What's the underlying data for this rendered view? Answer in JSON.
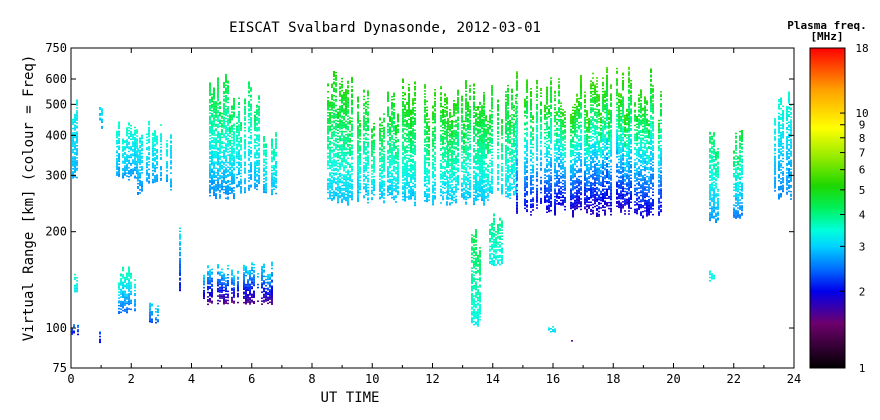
{
  "chart_data": {
    "type": "scatter",
    "title": "EISCAT Svalbard Dynasonde, 2012-03-01",
    "xlabel": "UT TIME",
    "ylabel": "Virtual Range [km] (colour = Freq)",
    "xlim": [
      0,
      24
    ],
    "ylim": [
      75,
      750
    ],
    "yscale": "log",
    "xticks": [
      0,
      2,
      4,
      6,
      8,
      10,
      12,
      14,
      16,
      18,
      20,
      22,
      24
    ],
    "yticks": [
      75,
      100,
      200,
      300,
      400,
      500,
      600,
      750
    ],
    "colorbar": {
      "title_line1": "Plasma freq.",
      "title_line2": "[MHz]",
      "scale": "log",
      "range": [
        1,
        18
      ],
      "ticks": [
        1,
        2,
        3,
        4,
        5,
        6,
        7,
        8,
        9,
        10,
        18
      ]
    },
    "series": [
      {
        "x_start": 0.05,
        "x_end": 0.35,
        "y_bottom": 290,
        "y_top": 520,
        "freq_bottom": 2.8,
        "freq_top": 3.3
      },
      {
        "x_start": 0.0,
        "x_end": 0.3,
        "y_bottom": 95,
        "y_top": 105,
        "freq_bottom": 2.0,
        "freq_top": 2.6
      },
      {
        "x_start": 0.1,
        "x_end": 0.2,
        "y_bottom": 128,
        "y_top": 152,
        "freq_bottom": 3.2,
        "freq_top": 3.6
      },
      {
        "x_start": 0.95,
        "x_end": 1.05,
        "y_bottom": 90,
        "y_top": 105,
        "freq_bottom": 2.0,
        "freq_top": 2.5
      },
      {
        "x_start": 0.95,
        "x_end": 1.05,
        "y_bottom": 410,
        "y_top": 520,
        "freq_bottom": 2.8,
        "freq_top": 3.2
      },
      {
        "x_start": 1.5,
        "x_end": 2.2,
        "y_bottom": 290,
        "y_top": 450,
        "freq_bottom": 2.7,
        "freq_top": 3.6
      },
      {
        "x_start": 2.2,
        "x_end": 2.35,
        "y_bottom": 255,
        "y_top": 420,
        "freq_bottom": 2.6,
        "freq_top": 3.4
      },
      {
        "x_start": 2.5,
        "x_end": 3.2,
        "y_bottom": 280,
        "y_top": 450,
        "freq_bottom": 2.7,
        "freq_top": 3.6
      },
      {
        "x_start": 3.25,
        "x_end": 3.35,
        "y_bottom": 265,
        "y_top": 420,
        "freq_bottom": 2.8,
        "freq_top": 3.2
      },
      {
        "x_start": 1.5,
        "x_end": 2.1,
        "y_bottom": 110,
        "y_top": 160,
        "freq_bottom": 2.4,
        "freq_top": 3.8
      },
      {
        "x_start": 2.6,
        "x_end": 2.9,
        "y_bottom": 103,
        "y_top": 125,
        "freq_bottom": 2.3,
        "freq_top": 3.2
      },
      {
        "x_start": 3.6,
        "x_end": 3.7,
        "y_bottom": 125,
        "y_top": 230,
        "freq_bottom": 2.0,
        "freq_top": 3.3
      },
      {
        "x_start": 4.6,
        "x_end": 5.5,
        "y_bottom": 250,
        "y_top": 640,
        "freq_bottom": 2.6,
        "freq_top": 4.6
      },
      {
        "x_start": 5.5,
        "x_end": 6.4,
        "y_bottom": 260,
        "y_top": 600,
        "freq_bottom": 2.7,
        "freq_top": 4.3
      },
      {
        "x_start": 6.4,
        "x_end": 7.0,
        "y_bottom": 260,
        "y_top": 420,
        "freq_bottom": 2.8,
        "freq_top": 4.0
      },
      {
        "x_start": 4.4,
        "x_end": 6.7,
        "y_bottom": 118,
        "y_top": 165,
        "freq_bottom": 1.6,
        "freq_top": 3.2
      },
      {
        "x_start": 8.5,
        "x_end": 9.5,
        "y_bottom": 240,
        "y_top": 650,
        "freq_bottom": 2.9,
        "freq_top": 5.2
      },
      {
        "x_start": 9.5,
        "x_end": 11.0,
        "y_bottom": 245,
        "y_top": 560,
        "freq_bottom": 2.9,
        "freq_top": 5.0
      },
      {
        "x_start": 11.0,
        "x_end": 12.5,
        "y_bottom": 240,
        "y_top": 630,
        "freq_bottom": 2.9,
        "freq_top": 5.4
      },
      {
        "x_start": 12.5,
        "x_end": 13.7,
        "y_bottom": 240,
        "y_top": 600,
        "freq_bottom": 2.9,
        "freq_top": 5.2
      },
      {
        "x_start": 13.5,
        "x_end": 14.8,
        "y_bottom": 250,
        "y_top": 600,
        "freq_bottom": 3.0,
        "freq_top": 5.0
      },
      {
        "x_start": 14.8,
        "x_end": 16.5,
        "y_bottom": 225,
        "y_top": 650,
        "freq_bottom": 1.9,
        "freq_top": 5.5
      },
      {
        "x_start": 16.5,
        "x_end": 18.5,
        "y_bottom": 222,
        "y_top": 660,
        "freq_bottom": 1.8,
        "freq_top": 5.7
      },
      {
        "x_start": 18.5,
        "x_end": 19.6,
        "y_bottom": 220,
        "y_top": 650,
        "freq_bottom": 1.9,
        "freq_top": 5.3
      },
      {
        "x_start": 13.3,
        "x_end": 13.6,
        "y_bottom": 100,
        "y_top": 210,
        "freq_bottom": 3.3,
        "freq_top": 4.4
      },
      {
        "x_start": 13.9,
        "x_end": 14.3,
        "y_bottom": 155,
        "y_top": 230,
        "freq_bottom": 3.3,
        "freq_top": 4.0
      },
      {
        "x_start": 15.8,
        "x_end": 16.1,
        "y_bottom": 96,
        "y_top": 102,
        "freq_bottom": 3.0,
        "freq_top": 3.3
      },
      {
        "x_start": 16.6,
        "x_end": 16.7,
        "y_bottom": 91,
        "y_top": 93,
        "freq_bottom": 1.7,
        "freq_top": 1.7
      },
      {
        "x_start": 21.2,
        "x_end": 21.5,
        "y_bottom": 212,
        "y_top": 420,
        "freq_bottom": 2.7,
        "freq_top": 4.3
      },
      {
        "x_start": 22.0,
        "x_end": 22.3,
        "y_bottom": 215,
        "y_top": 430,
        "freq_bottom": 2.5,
        "freq_top": 4.6
      },
      {
        "x_start": 21.2,
        "x_end": 21.35,
        "y_bottom": 140,
        "y_top": 152,
        "freq_bottom": 3.3,
        "freq_top": 3.5
      },
      {
        "x_start": 23.3,
        "x_end": 23.9,
        "y_bottom": 250,
        "y_top": 580,
        "freq_bottom": 2.6,
        "freq_top": 3.5
      }
    ]
  }
}
